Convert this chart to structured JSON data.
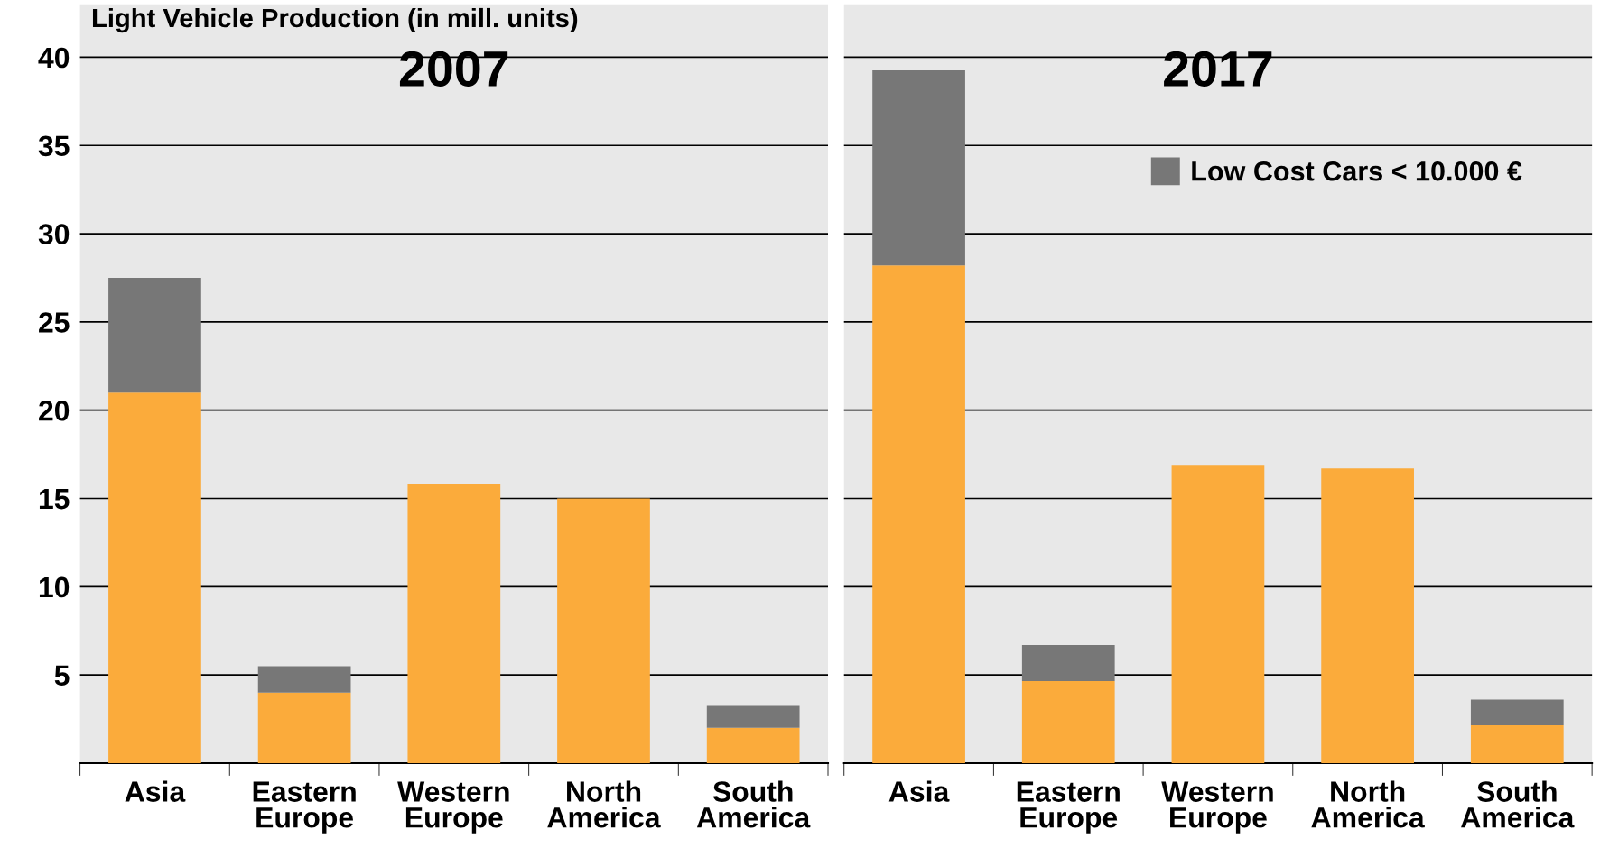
{
  "chart_data": [
    {
      "type": "bar",
      "title": "2007",
      "annotations": [
        "Light Vehicle Production (in mill. units)"
      ],
      "categories": [
        "Asia",
        "Eastern\nEurope",
        "Western\nEurope",
        "North\nAmerica",
        "South\nAmerica"
      ],
      "stacked": true,
      "ylim": [
        0,
        43
      ],
      "yticks": [
        5,
        10,
        15,
        20,
        25,
        30,
        35,
        40
      ],
      "grid": "y",
      "series": [
        {
          "color": "#fbab3b",
          "values": [
            21,
            4,
            15.8,
            15,
            2
          ]
        },
        {
          "color": "#777777",
          "values": [
            6.5,
            1.5,
            0,
            0,
            1.25
          ]
        }
      ]
    },
    {
      "type": "bar",
      "title": "2017",
      "categories": [
        "Asia",
        "Eastern\nEurope",
        "Western\nEurope",
        "North\nAmerica",
        "South\nAmerica"
      ],
      "stacked": true,
      "ylim": [
        0,
        43
      ],
      "yticks": [
        5,
        10,
        15,
        20,
        25,
        30,
        35,
        40
      ],
      "grid": "y",
      "tick_labels": "x",
      "legend": "top right",
      "series": [
        {
          "color": "#fbab3b",
          "values": [
            28.2,
            4.65,
            16.85,
            16.7,
            2.15
          ]
        },
        {
          "name": "Low Cost Cars < 10.000 €",
          "color": "#777777",
          "values": [
            11.05,
            2.05,
            0,
            0,
            1.45
          ]
        }
      ]
    }
  ]
}
